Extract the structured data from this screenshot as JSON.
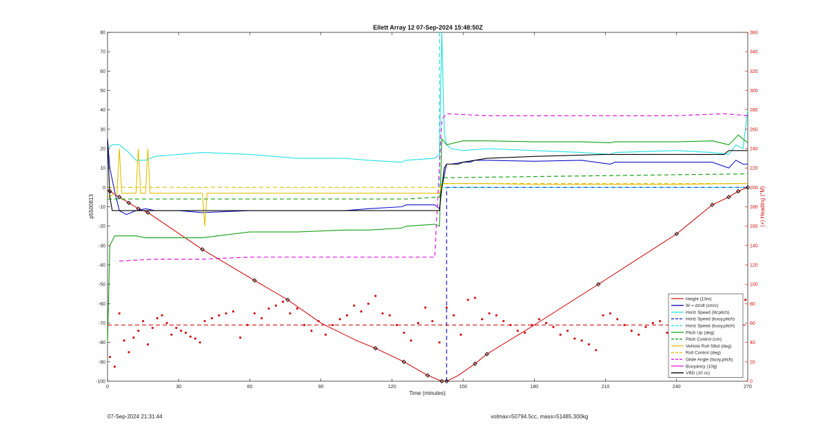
{
  "chart_data": {
    "type": "line",
    "title": "Ellett Array 12 07-Sep-2024 15:48:50Z",
    "xlabel": "Time (minutes)",
    "ylabel": "p5500813",
    "y2label": "(+) Heading (°M)",
    "xlim": [
      0,
      270
    ],
    "ylim": [
      -100,
      80
    ],
    "y2lim": [
      0,
      360
    ],
    "x_ticks": [
      0,
      30,
      60,
      90,
      120,
      150,
      180,
      210,
      240,
      270
    ],
    "y_ticks": [
      -100,
      -90,
      -80,
      -70,
      -60,
      -50,
      -40,
      -30,
      -20,
      -10,
      0,
      10,
      20,
      30,
      40,
      50,
      60,
      70,
      80
    ],
    "y2_ticks": [
      0,
      20,
      40,
      60,
      80,
      100,
      120,
      140,
      160,
      180,
      200,
      220,
      240,
      260,
      280,
      300,
      320,
      340,
      360
    ],
    "grid": false,
    "legend_position": "bottom-right",
    "series": [
      {
        "name": "Height (10m)",
        "color": "#d01010",
        "style": "solid",
        "axis": "left",
        "x": [
          0,
          1,
          5,
          9,
          13,
          17,
          40,
          62,
          76,
          90,
          105,
          113,
          125,
          135,
          141,
          143,
          148,
          155,
          160,
          180,
          207,
          240,
          255,
          262,
          266,
          270
        ],
        "y": [
          -1,
          -2,
          -5,
          -8,
          -11,
          -13,
          -32,
          -48,
          -58,
          -70,
          -79,
          -83,
          -90,
          -97,
          -100,
          -100,
          -97,
          -91,
          -86,
          -71,
          -50,
          -24,
          -9,
          -5,
          -2,
          0
        ]
      },
      {
        "name": "W = dz/dt (cm/s)",
        "color": "#1010c8",
        "style": "solid",
        "axis": "left",
        "x": [
          0,
          1,
          3,
          5,
          8,
          12,
          16,
          20,
          30,
          40,
          60,
          80,
          100,
          110,
          124,
          126,
          138,
          140,
          141,
          143,
          145,
          150,
          153,
          155,
          160,
          180,
          200,
          212,
          214,
          240,
          255,
          262,
          265,
          268,
          270
        ],
        "y": [
          25,
          10,
          -2,
          -12,
          -14,
          -12,
          -11,
          -12,
          -12,
          -13,
          -12,
          -12,
          -12,
          -11,
          -10,
          -9,
          -9,
          -11,
          0,
          12,
          12,
          13,
          13,
          14,
          14,
          13.5,
          14,
          12,
          13,
          13,
          13,
          10,
          14,
          12,
          12
        ]
      },
      {
        "name": "Horiz Speed (W,pitch)",
        "color": "#20e0e0",
        "style": "solid",
        "axis": "left",
        "x": [
          0,
          2,
          5,
          9,
          12,
          16,
          20,
          30,
          40,
          60,
          80,
          100,
          110,
          124,
          126,
          138,
          140,
          141,
          142,
          143,
          145,
          150,
          160,
          180,
          200,
          212,
          214,
          240,
          255,
          262,
          265,
          268,
          270
        ],
        "y": [
          20,
          22,
          22,
          18,
          14,
          14,
          16,
          17,
          18,
          17,
          15,
          15,
          14,
          13,
          14,
          15,
          17,
          80,
          28,
          22,
          20,
          19,
          20,
          19,
          18,
          17,
          18,
          19,
          18,
          17,
          22,
          20,
          40
        ]
      },
      {
        "name": "Horiz Speed (buoy,pitch)",
        "color": "#1010c8",
        "style": "dashed",
        "axis": "left",
        "x": [
          143,
          143,
          145,
          270
        ],
        "y": [
          -100,
          0,
          0,
          0
        ]
      },
      {
        "name": "Horiz Speed (buoy,pitch)",
        "color": "#20e0e0",
        "style": "dashed",
        "axis": "left",
        "x": [
          140,
          140,
          145,
          270
        ],
        "y": [
          80,
          0,
          0,
          0
        ]
      },
      {
        "name": "Pitch Up (deg)",
        "color": "#10a010",
        "style": "solid",
        "axis": "left",
        "x": [
          0,
          1,
          3,
          6,
          12,
          16,
          40,
          60,
          80,
          100,
          110,
          124,
          126,
          138,
          140,
          141,
          143,
          150,
          160,
          180,
          200,
          212,
          214,
          240,
          255,
          262,
          266,
          270
        ],
        "y": [
          -80,
          -30,
          -25,
          -25,
          -25,
          -26,
          -26,
          -23,
          -23,
          -22,
          -22,
          -21,
          -20,
          -19,
          -20,
          25,
          22,
          24,
          24,
          23.5,
          23.5,
          23,
          23.5,
          23.5,
          24,
          22,
          27,
          23
        ]
      },
      {
        "name": "Pitch Control (cm)",
        "color": "#10a010",
        "style": "dashed",
        "axis": "left",
        "x": [
          0,
          2,
          40,
          126,
          140,
          142,
          270
        ],
        "y": [
          -6,
          -6,
          -6,
          -6,
          -5,
          5,
          7
        ]
      },
      {
        "name": "Vehicle Roll Stbd (deg)",
        "color": "#e0c000",
        "style": "solid",
        "axis": "left",
        "x": [
          0,
          4,
          5,
          6,
          12,
          13,
          14,
          16,
          17,
          18,
          40,
          41,
          42,
          78,
          126,
          138,
          140,
          141,
          150,
          160,
          180,
          210,
          240,
          265,
          270
        ],
        "y": [
          -5,
          -3,
          20,
          -3,
          -3,
          20,
          -3,
          -3,
          20,
          -3,
          -3,
          -20,
          -3,
          -3,
          -3,
          -3,
          -3,
          2,
          2,
          2,
          1.5,
          1.5,
          1.5,
          2,
          2
        ]
      },
      {
        "name": "Roll Control (deg)",
        "color": "#e0c000",
        "style": "dashed",
        "axis": "left",
        "x": [
          0,
          2,
          40,
          126,
          140,
          142,
          270
        ],
        "y": [
          0,
          0,
          0,
          0,
          0,
          2,
          2
        ]
      },
      {
        "name": "Glide Angle (buoy,pitch)",
        "color": "#e010e0",
        "style": "dashed",
        "axis": "left",
        "x": [
          5,
          20,
          40,
          60,
          80,
          100,
          120,
          138,
          141,
          143,
          160,
          180,
          200,
          220,
          240,
          260,
          270
        ],
        "y": [
          -38,
          -37,
          -37,
          -36,
          -36,
          -36,
          -36,
          -36,
          35,
          38,
          37,
          37,
          37,
          37,
          37,
          38,
          37
        ]
      },
      {
        "name": "Buoyancy (10g)",
        "color": "#e010e0",
        "style": "solid",
        "axis": "left",
        "x": [],
        "y": []
      },
      {
        "name": "VBD (10 cc)",
        "color": "#000000",
        "style": "solid",
        "axis": "left",
        "x": [
          0,
          1,
          2,
          140,
          141,
          142,
          143,
          148,
          150,
          160,
          180,
          210,
          240,
          260,
          262,
          270
        ],
        "y": [
          24,
          -5,
          -12,
          -12,
          0,
          10,
          12,
          12,
          13,
          15,
          16,
          17,
          17,
          17,
          19,
          19
        ]
      },
      {
        "name": "Heading",
        "color": "#d01010",
        "style": "dots",
        "axis": "right",
        "x": [
          1,
          3,
          5,
          7,
          9,
          11,
          13,
          15,
          17,
          19,
          21,
          23,
          25,
          27,
          29,
          31,
          33,
          35,
          37,
          39,
          41,
          44,
          47,
          50,
          53,
          56,
          59,
          62,
          65,
          68,
          71,
          74,
          77,
          80,
          83,
          86,
          89,
          92,
          95,
          98,
          101,
          104,
          107,
          110,
          113,
          116,
          119,
          122,
          125,
          128,
          131,
          134,
          137,
          140,
          143,
          146,
          149,
          152,
          155,
          158,
          161,
          164,
          167,
          170,
          173,
          176,
          179,
          182,
          185,
          188,
          191,
          194,
          197,
          200,
          203,
          206,
          209,
          212,
          215,
          218,
          221,
          224,
          227,
          230,
          233,
          236,
          239,
          242,
          245,
          248,
          251,
          254,
          257,
          260,
          263,
          266,
          269
        ],
        "y": [
          25,
          15,
          70,
          42,
          30,
          45,
          52,
          62,
          38,
          55,
          65,
          68,
          60,
          48,
          55,
          52,
          50,
          46,
          44,
          40,
          62,
          65,
          68,
          70,
          72,
          45,
          58,
          70,
          65,
          75,
          78,
          82,
          70,
          75,
          58,
          52,
          62,
          48,
          58,
          64,
          68,
          78,
          72,
          80,
          88,
          70,
          68,
          58,
          50,
          42,
          60,
          76,
          62,
          40,
          76,
          68,
          48,
          84,
          86,
          64,
          70,
          68,
          62,
          58,
          52,
          50,
          58,
          64,
          60,
          56,
          48,
          52,
          44,
          42,
          38,
          32,
          68,
          70,
          64,
          58,
          52,
          48,
          56,
          60,
          62,
          50,
          42,
          44,
          48,
          56,
          52,
          74,
          64,
          68,
          46,
          28,
          84
        ]
      },
      {
        "name": "Heading target",
        "color": "#d01010",
        "style": "dashed",
        "axis": "right",
        "x": [
          0,
          270
        ],
        "y": [
          58,
          58
        ]
      }
    ],
    "legend": [
      "Height (10m)",
      "W = dz/dt (cm/s)",
      "Horiz Speed (W,pitch)",
      "Horiz Speed (buoy,pitch)",
      "Horiz Speed (buoy,pitch)",
      "Pitch Up (deg)",
      "Pitch Control (cm)",
      "Vehicle Roll Stbd (deg)",
      "Roll Control (deg)",
      "Glide Angle (buoy,pitch)",
      "Buoyancy (10g)",
      "VBD (10 cc)"
    ],
    "height_markers_x": [
      1,
      5,
      9,
      13,
      17,
      40,
      62,
      76,
      113,
      125,
      135,
      141,
      143,
      155,
      160,
      207,
      240,
      255,
      262,
      266,
      270
    ]
  },
  "footer": {
    "left": "07-Sep-2024 21:31:44",
    "right": "volmax=50794.5cc, mass=51485.300kg"
  }
}
